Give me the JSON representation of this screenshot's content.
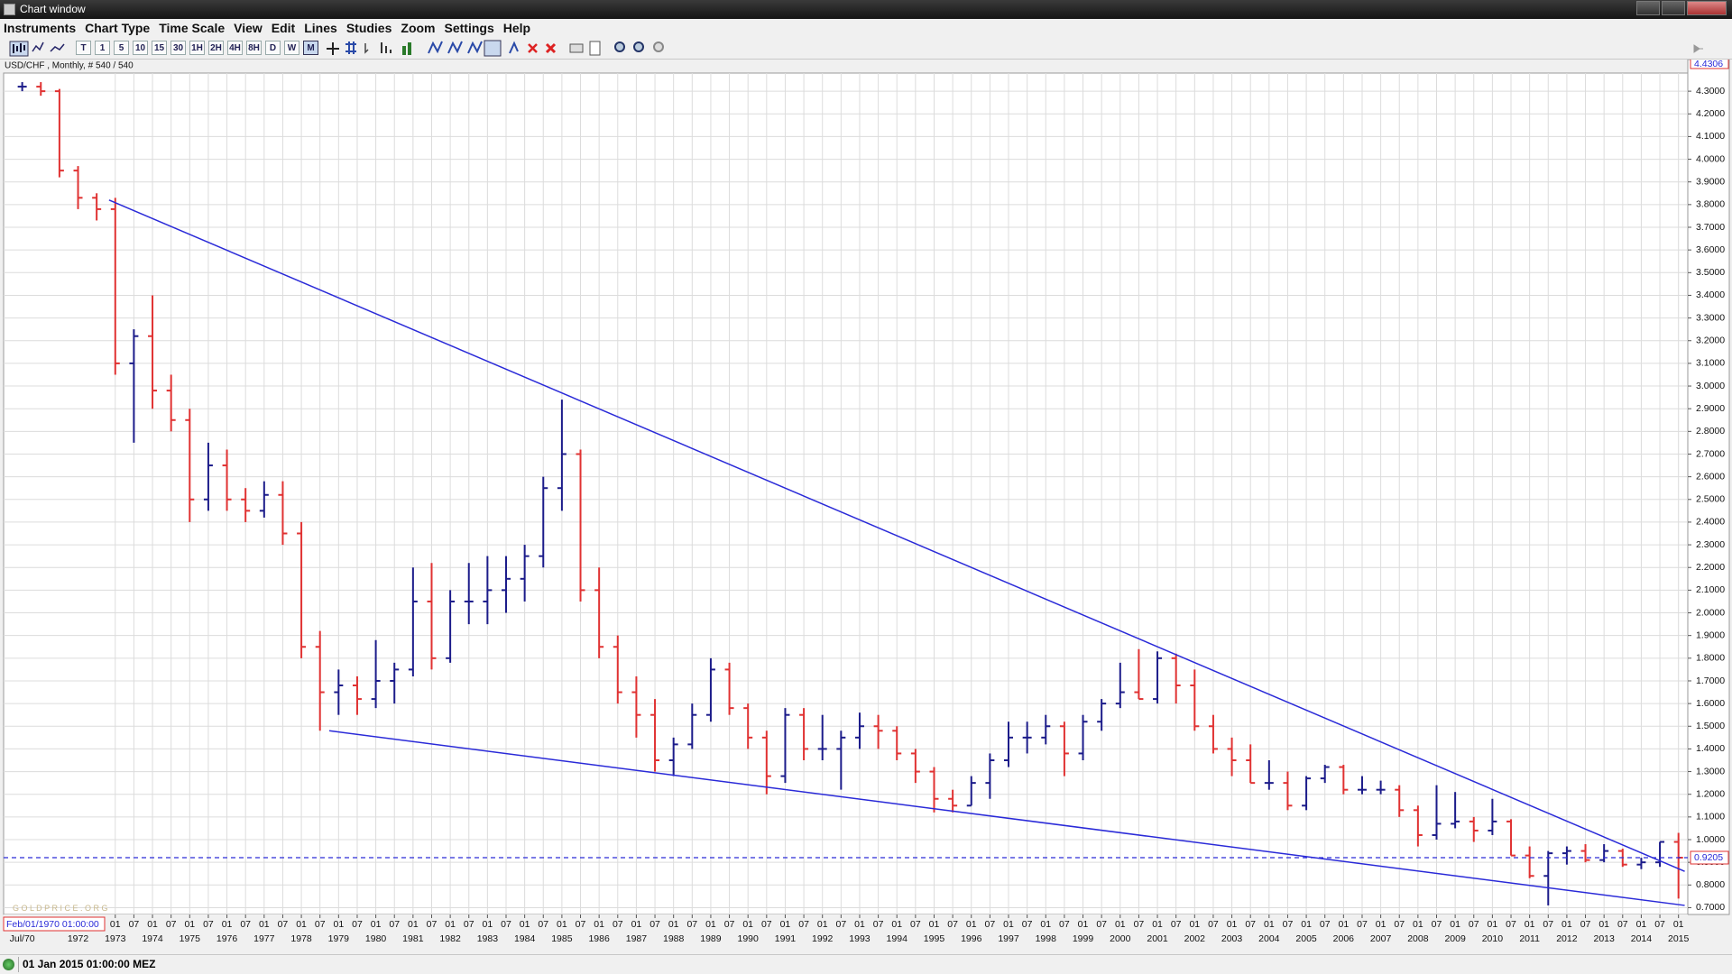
{
  "window": {
    "title": "Chart window"
  },
  "menu": [
    "Instruments",
    "Chart Type",
    "Time Scale",
    "View",
    "Edit",
    "Lines",
    "Studies",
    "Zoom",
    "Settings",
    "Help"
  ],
  "toolbar": {
    "timeframes": [
      "T",
      "1",
      "5",
      "10",
      "15",
      "30",
      "1H",
      "2H",
      "4H",
      "8H",
      "D",
      "W",
      "M"
    ]
  },
  "status": {
    "text": "01 Jan 2015 01:00:00 MEZ"
  },
  "chart_data": {
    "type": "ohlc",
    "title": "USD/CHF , Monthly, # 540 / 540",
    "watermark": "G O L D P R I C E . O R G",
    "cursor_label": "Feb/01/1970 01:00:00",
    "up_color": "#1c1c8a",
    "down_color": "#e03232",
    "grid": true,
    "xlim": [
      "1970-01",
      "2015-04"
    ],
    "ylim": [
      0.67,
      4.38
    ],
    "x": [
      "1970-07",
      "1971-01",
      "1971-07",
      "1972-01",
      "1972-07",
      "1973-01",
      "1973-07",
      "1974-01",
      "1974-07",
      "1975-01",
      "1975-07",
      "1976-01",
      "1976-07",
      "1977-01",
      "1977-07",
      "1978-01",
      "1978-07",
      "1979-01",
      "1979-07",
      "1980-01",
      "1980-07",
      "1981-01",
      "1981-07",
      "1982-01",
      "1982-07",
      "1983-01",
      "1983-07",
      "1984-01",
      "1984-07",
      "1985-01",
      "1985-07",
      "1986-01",
      "1986-07",
      "1987-01",
      "1987-07",
      "1988-01",
      "1988-07",
      "1989-01",
      "1989-07",
      "1990-01",
      "1990-07",
      "1991-01",
      "1991-07",
      "1992-01",
      "1992-07",
      "1993-01",
      "1993-07",
      "1994-01",
      "1994-07",
      "1995-01",
      "1995-07",
      "1996-01",
      "1996-07",
      "1997-01",
      "1997-07",
      "1998-01",
      "1998-07",
      "1999-01",
      "1999-07",
      "2000-01",
      "2000-07",
      "2001-01",
      "2001-07",
      "2002-01",
      "2002-07",
      "2003-01",
      "2003-07",
      "2004-01",
      "2004-07",
      "2005-01",
      "2005-07",
      "2006-01",
      "2006-07",
      "2007-01",
      "2007-07",
      "2008-01",
      "2008-07",
      "2009-01",
      "2009-07",
      "2010-01",
      "2010-07",
      "2011-01",
      "2011-07",
      "2012-01",
      "2012-07",
      "2013-01",
      "2013-07",
      "2014-01",
      "2014-07",
      "2015-01"
    ],
    "open": [
      4.32,
      4.32,
      4.3,
      3.95,
      3.83,
      3.78,
      3.1,
      3.22,
      2.98,
      2.85,
      2.5,
      2.65,
      2.5,
      2.45,
      2.52,
      2.35,
      1.85,
      1.65,
      1.68,
      1.62,
      1.7,
      1.75,
      2.05,
      1.8,
      2.05,
      2.05,
      2.1,
      2.15,
      2.25,
      2.55,
      2.7,
      2.1,
      1.85,
      1.65,
      1.55,
      1.35,
      1.42,
      1.55,
      1.75,
      1.58,
      1.45,
      1.28,
      1.55,
      1.4,
      1.4,
      1.45,
      1.5,
      1.48,
      1.38,
      1.3,
      1.18,
      1.15,
      1.25,
      1.35,
      1.45,
      1.45,
      1.5,
      1.38,
      1.52,
      1.6,
      1.65,
      1.62,
      1.8,
      1.68,
      1.5,
      1.4,
      1.35,
      1.25,
      1.25,
      1.15,
      1.27,
      1.32,
      1.22,
      1.22,
      1.22,
      1.13,
      1.02,
      1.07,
      1.08,
      1.04,
      1.08,
      0.93,
      0.84,
      0.94,
      0.95,
      0.91,
      0.95,
      0.89,
      0.9,
      0.99
    ],
    "high": [
      4.34,
      4.34,
      4.31,
      3.97,
      3.85,
      3.83,
      3.25,
      3.4,
      3.05,
      2.9,
      2.75,
      2.72,
      2.55,
      2.58,
      2.58,
      2.4,
      1.92,
      1.75,
      1.72,
      1.88,
      1.78,
      2.2,
      2.22,
      2.1,
      2.22,
      2.25,
      2.25,
      2.3,
      2.6,
      2.94,
      2.72,
      2.2,
      1.9,
      1.72,
      1.62,
      1.45,
      1.6,
      1.8,
      1.78,
      1.6,
      1.48,
      1.58,
      1.58,
      1.55,
      1.48,
      1.56,
      1.55,
      1.5,
      1.4,
      1.32,
      1.22,
      1.28,
      1.38,
      1.52,
      1.52,
      1.55,
      1.52,
      1.55,
      1.62,
      1.78,
      1.84,
      1.83,
      1.82,
      1.75,
      1.55,
      1.45,
      1.42,
      1.35,
      1.3,
      1.28,
      1.33,
      1.33,
      1.28,
      1.26,
      1.24,
      1.15,
      1.24,
      1.21,
      1.1,
      1.18,
      1.09,
      0.97,
      0.95,
      0.97,
      0.98,
      0.98,
      0.96,
      0.92,
      0.99,
      1.03
    ],
    "low": [
      4.3,
      4.28,
      3.92,
      3.78,
      3.73,
      3.05,
      2.75,
      2.9,
      2.8,
      2.4,
      2.45,
      2.45,
      2.4,
      2.42,
      2.3,
      1.8,
      1.48,
      1.55,
      1.55,
      1.58,
      1.6,
      1.72,
      1.75,
      1.78,
      1.95,
      1.95,
      2.0,
      2.05,
      2.2,
      2.45,
      2.05,
      1.8,
      1.6,
      1.45,
      1.3,
      1.28,
      1.4,
      1.52,
      1.55,
      1.4,
      1.2,
      1.25,
      1.35,
      1.35,
      1.22,
      1.4,
      1.4,
      1.35,
      1.25,
      1.12,
      1.12,
      1.15,
      1.18,
      1.32,
      1.38,
      1.42,
      1.28,
      1.35,
      1.48,
      1.58,
      1.62,
      1.6,
      1.6,
      1.48,
      1.38,
      1.28,
      1.25,
      1.22,
      1.13,
      1.13,
      1.25,
      1.2,
      1.2,
      1.2,
      1.1,
      0.97,
      1.0,
      1.05,
      0.99,
      1.02,
      0.93,
      0.83,
      0.71,
      0.89,
      0.9,
      0.9,
      0.88,
      0.87,
      0.88,
      0.74
    ],
    "close": [
      4.32,
      4.3,
      3.95,
      3.83,
      3.78,
      3.1,
      3.22,
      2.98,
      2.85,
      2.5,
      2.65,
      2.5,
      2.45,
      2.52,
      2.35,
      1.85,
      1.65,
      1.68,
      1.62,
      1.7,
      1.75,
      2.05,
      1.8,
      2.05,
      2.05,
      2.1,
      2.15,
      2.25,
      2.55,
      2.7,
      2.1,
      1.85,
      1.65,
      1.55,
      1.35,
      1.42,
      1.55,
      1.75,
      1.58,
      1.45,
      1.28,
      1.55,
      1.4,
      1.4,
      1.45,
      1.5,
      1.48,
      1.38,
      1.3,
      1.18,
      1.15,
      1.25,
      1.35,
      1.45,
      1.45,
      1.5,
      1.38,
      1.52,
      1.6,
      1.65,
      1.62,
      1.8,
      1.68,
      1.5,
      1.4,
      1.35,
      1.25,
      1.25,
      1.15,
      1.27,
      1.32,
      1.22,
      1.22,
      1.22,
      1.13,
      1.02,
      1.07,
      1.08,
      1.04,
      1.08,
      0.93,
      0.84,
      0.94,
      0.95,
      0.91,
      0.95,
      0.89,
      0.9,
      0.99,
      0.9205
    ],
    "yticks": [
      {
        "value": 0.7,
        "label": "0.7000"
      },
      {
        "value": 0.8,
        "label": "0.8000"
      },
      {
        "value": 0.9,
        "label": "0.9000"
      },
      {
        "value": 1,
        "label": "1.0000"
      },
      {
        "value": 1.1,
        "label": "1.1000"
      },
      {
        "value": 1.2,
        "label": "1.2000"
      },
      {
        "value": 1.3,
        "label": "1.3000"
      },
      {
        "value": 1.4,
        "label": "1.4000"
      },
      {
        "value": 1.5,
        "label": "1.5000"
      },
      {
        "value": 1.6,
        "label": "1.6000"
      },
      {
        "value": 1.7,
        "label": "1.7000"
      },
      {
        "value": 1.8,
        "label": "1.8000"
      },
      {
        "value": 1.9,
        "label": "1.9000"
      },
      {
        "value": 2,
        "label": "2.0000"
      },
      {
        "value": 2.1,
        "label": "2.1000"
      },
      {
        "value": 2.2,
        "label": "2.2000"
      },
      {
        "value": 2.3,
        "label": "2.3000"
      },
      {
        "value": 2.4,
        "label": "2.4000"
      },
      {
        "value": 2.5,
        "label": "2.5000"
      },
      {
        "value": 2.6,
        "label": "2.6000"
      },
      {
        "value": 2.7,
        "label": "2.7000"
      },
      {
        "value": 2.8,
        "label": "2.8000"
      },
      {
        "value": 2.9,
        "label": "2.9000"
      },
      {
        "value": 3,
        "label": "3.0000"
      },
      {
        "value": 3.1,
        "label": "3.1000"
      },
      {
        "value": 3.2,
        "label": "3.2000"
      },
      {
        "value": 3.3,
        "label": "3.3000"
      },
      {
        "value": 3.4,
        "label": "3.4000"
      },
      {
        "value": 3.5,
        "label": "3.5000"
      },
      {
        "value": 3.6,
        "label": "3.6000"
      },
      {
        "value": 3.7,
        "label": "3.7000"
      },
      {
        "value": 3.8,
        "label": "3.8000"
      },
      {
        "value": 3.9,
        "label": "3.9000"
      },
      {
        "value": 4,
        "label": "4.0000"
      },
      {
        "value": 4.1,
        "label": "4.1000"
      },
      {
        "value": 4.2,
        "label": "4.2000"
      },
      {
        "value": 4.3,
        "label": "4.3000"
      }
    ],
    "xticks": [
      {
        "value": "1973-01",
        "label": "01"
      },
      {
        "value": "1973-07",
        "label": "07"
      },
      {
        "value": "1974-01",
        "label": "01"
      },
      {
        "value": "1974-07",
        "label": "07"
      },
      {
        "value": "1975-01",
        "label": "01"
      },
      {
        "value": "1975-07",
        "label": "07"
      },
      {
        "value": "1976-01",
        "label": "01"
      },
      {
        "value": "1976-07",
        "label": "07"
      },
      {
        "value": "1977-01",
        "label": "01"
      },
      {
        "value": "1977-07",
        "label": "07"
      },
      {
        "value": "1978-01",
        "label": "01"
      },
      {
        "value": "1978-07",
        "label": "07"
      },
      {
        "value": "1979-01",
        "label": "01"
      },
      {
        "value": "1979-07",
        "label": "07"
      },
      {
        "value": "1980-01",
        "label": "01"
      },
      {
        "value": "1980-07",
        "label": "07"
      },
      {
        "value": "1981-01",
        "label": "01"
      },
      {
        "value": "1981-07",
        "label": "07"
      },
      {
        "value": "1982-01",
        "label": "01"
      },
      {
        "value": "1982-07",
        "label": "07"
      },
      {
        "value": "1983-01",
        "label": "01"
      },
      {
        "value": "1983-07",
        "label": "07"
      },
      {
        "value": "1984-01",
        "label": "01"
      },
      {
        "value": "1984-07",
        "label": "07"
      },
      {
        "value": "1985-01",
        "label": "01"
      },
      {
        "value": "1985-07",
        "label": "07"
      },
      {
        "value": "1986-01",
        "label": "01"
      },
      {
        "value": "1986-07",
        "label": "07"
      },
      {
        "value": "1987-01",
        "label": "01"
      },
      {
        "value": "1987-07",
        "label": "07"
      },
      {
        "value": "1988-01",
        "label": "01"
      },
      {
        "value": "1988-07",
        "label": "07"
      },
      {
        "value": "1989-01",
        "label": "01"
      },
      {
        "value": "1989-07",
        "label": "07"
      },
      {
        "value": "1990-01",
        "label": "01"
      },
      {
        "value": "1990-07",
        "label": "07"
      },
      {
        "value": "1991-01",
        "label": "01"
      },
      {
        "value": "1991-07",
        "label": "07"
      },
      {
        "value": "1992-01",
        "label": "01"
      },
      {
        "value": "1992-07",
        "label": "07"
      },
      {
        "value": "1993-01",
        "label": "01"
      },
      {
        "value": "1993-07",
        "label": "07"
      },
      {
        "value": "1994-01",
        "label": "01"
      },
      {
        "value": "1994-07",
        "label": "07"
      },
      {
        "value": "1995-01",
        "label": "01"
      },
      {
        "value": "1995-07",
        "label": "07"
      },
      {
        "value": "1996-01",
        "label": "01"
      },
      {
        "value": "1996-07",
        "label": "07"
      },
      {
        "value": "1997-01",
        "label": "01"
      },
      {
        "value": "1997-07",
        "label": "07"
      },
      {
        "value": "1998-01",
        "label": "01"
      },
      {
        "value": "1998-07",
        "label": "07"
      },
      {
        "value": "1999-01",
        "label": "01"
      },
      {
        "value": "1999-07",
        "label": "07"
      },
      {
        "value": "2000-01",
        "label": "01"
      },
      {
        "value": "2000-07",
        "label": "07"
      },
      {
        "value": "2001-01",
        "label": "01"
      },
      {
        "value": "2001-07",
        "label": "07"
      },
      {
        "value": "2002-01",
        "label": "01"
      },
      {
        "value": "2002-07",
        "label": "07"
      },
      {
        "value": "2003-01",
        "label": "01"
      },
      {
        "value": "2003-07",
        "label": "07"
      },
      {
        "value": "2004-01",
        "label": "01"
      },
      {
        "value": "2004-07",
        "label": "07"
      },
      {
        "value": "2005-01",
        "label": "01"
      },
      {
        "value": "2005-07",
        "label": "07"
      },
      {
        "value": "2006-01",
        "label": "01"
      },
      {
        "value": "2006-07",
        "label": "07"
      },
      {
        "value": "2007-01",
        "label": "01"
      },
      {
        "value": "2007-07",
        "label": "07"
      },
      {
        "value": "2008-01",
        "label": "01"
      },
      {
        "value": "2008-07",
        "label": "07"
      },
      {
        "value": "2009-01",
        "label": "01"
      },
      {
        "value": "2009-07",
        "label": "07"
      },
      {
        "value": "2010-01",
        "label": "01"
      },
      {
        "value": "2010-07",
        "label": "07"
      },
      {
        "value": "2011-01",
        "label": "01"
      },
      {
        "value": "2011-07",
        "label": "07"
      },
      {
        "value": "2012-01",
        "label": "01"
      },
      {
        "value": "2012-07",
        "label": "07"
      },
      {
        "value": "2013-01",
        "label": "01"
      },
      {
        "value": "2013-07",
        "label": "07"
      },
      {
        "value": "2014-01",
        "label": "01"
      },
      {
        "value": "2014-07",
        "label": "07"
      },
      {
        "value": "2015-01",
        "label": "01"
      }
    ],
    "year_labels": [
      {
        "value": "1970-07",
        "label": "Jul/70"
      },
      {
        "value": "1972-01",
        "label": "1972"
      },
      {
        "value": "1973-01",
        "label": "1973"
      },
      {
        "value": "1974-01",
        "label": "1974"
      },
      {
        "value": "1975-01",
        "label": "1975"
      },
      {
        "value": "1976-01",
        "label": "1976"
      },
      {
        "value": "1977-01",
        "label": "1977"
      },
      {
        "value": "1978-01",
        "label": "1978"
      },
      {
        "value": "1979-01",
        "label": "1979"
      },
      {
        "value": "1980-01",
        "label": "1980"
      },
      {
        "value": "1981-01",
        "label": "1981"
      },
      {
        "value": "1982-01",
        "label": "1982"
      },
      {
        "value": "1983-01",
        "label": "1983"
      },
      {
        "value": "1984-01",
        "label": "1984"
      },
      {
        "value": "1985-01",
        "label": "1985"
      },
      {
        "value": "1986-01",
        "label": "1986"
      },
      {
        "value": "1987-01",
        "label": "1987"
      },
      {
        "value": "1988-01",
        "label": "1988"
      },
      {
        "value": "1989-01",
        "label": "1989"
      },
      {
        "value": "1990-01",
        "label": "1990"
      },
      {
        "value": "1991-01",
        "label": "1991"
      },
      {
        "value": "1992-01",
        "label": "1992"
      },
      {
        "value": "1993-01",
        "label": "1993"
      },
      {
        "value": "1994-01",
        "label": "1994"
      },
      {
        "value": "1995-01",
        "label": "1995"
      },
      {
        "value": "1996-01",
        "label": "1996"
      },
      {
        "value": "1997-01",
        "label": "1997"
      },
      {
        "value": "1998-01",
        "label": "1998"
      },
      {
        "value": "1999-01",
        "label": "1999"
      },
      {
        "value": "2000-01",
        "label": "2000"
      },
      {
        "value": "2001-01",
        "label": "2001"
      },
      {
        "value": "2002-01",
        "label": "2002"
      },
      {
        "value": "2003-01",
        "label": "2003"
      },
      {
        "value": "2004-01",
        "label": "2004"
      },
      {
        "value": "2005-01",
        "label": "2005"
      },
      {
        "value": "2006-01",
        "label": "2006"
      },
      {
        "value": "2007-01",
        "label": "2007"
      },
      {
        "value": "2008-01",
        "label": "2008"
      },
      {
        "value": "2009-01",
        "label": "2009"
      },
      {
        "value": "2010-01",
        "label": "2010"
      },
      {
        "value": "2011-01",
        "label": "2011"
      },
      {
        "value": "2012-01",
        "label": "2012"
      },
      {
        "value": "2013-01",
        "label": "2013"
      },
      {
        "value": "2014-01",
        "label": "2014"
      },
      {
        "value": "2015-01",
        "label": "2015"
      }
    ],
    "trendlines": [
      {
        "x": [
          "1972-11",
          "2015-03"
        ],
        "y": [
          3.82,
          0.86
        ],
        "color": "#2a2ad8"
      },
      {
        "x": [
          "1978-10",
          "2015-03"
        ],
        "y": [
          1.48,
          0.71
        ],
        "color": "#2a2ad8"
      }
    ],
    "last_price": 0.9205,
    "last_price_color": "#2a2ad8",
    "top_label": 4.4306
  }
}
